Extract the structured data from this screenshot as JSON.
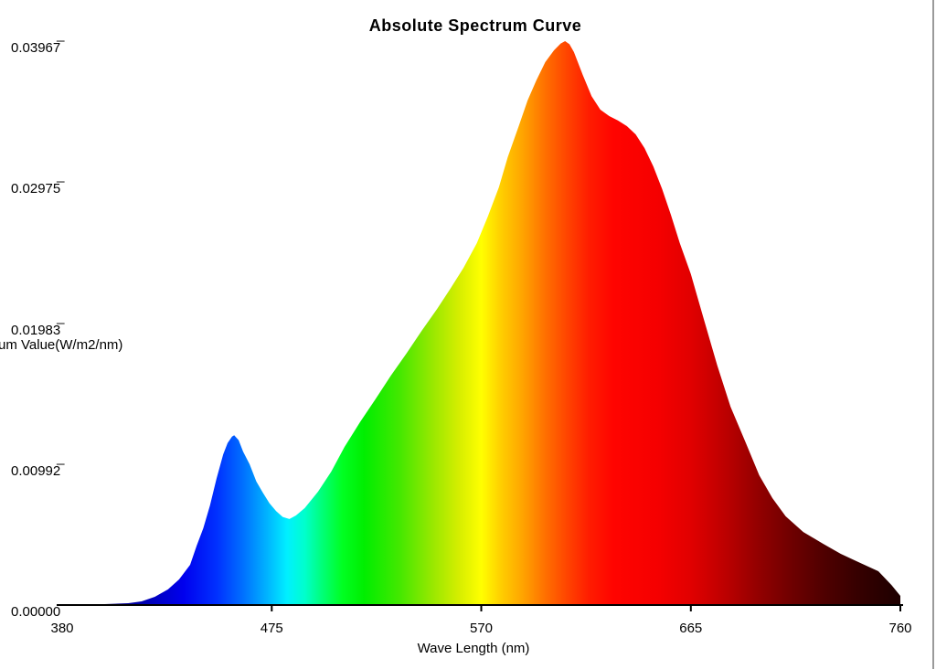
{
  "window": {
    "border_color": "#9a9a9a",
    "background": "#ffffff"
  },
  "chart_data": {
    "type": "area",
    "title": "Absolute Spectrum Curve",
    "xlabel": "Wave Length (nm)",
    "ylabel": "um Value(W/m2/nm)",
    "legend": "none",
    "grid": false,
    "axis_color": "#000000",
    "xlim": [
      380,
      760
    ],
    "ylim": [
      0,
      0.03967
    ],
    "x_ticks": [
      380,
      475,
      570,
      665,
      760
    ],
    "x_tick_labels": [
      "380",
      "475",
      "570",
      "665",
      "760"
    ],
    "y_tick_values": [
      0.03967,
      0.02975,
      0.01983,
      0.00992,
      0
    ],
    "y_tick_labels": [
      "0.03967̅",
      "0.02975̅",
      "0.01983̅",
      "0.00992̅",
      "0.00000"
    ],
    "points": [
      [
        380,
        0
      ],
      [
        398,
        6e-05
      ],
      [
        410,
        0.00013
      ],
      [
        416,
        0.00026
      ],
      [
        422,
        0.00058
      ],
      [
        428,
        0.0011
      ],
      [
        433,
        0.0018
      ],
      [
        438,
        0.00283
      ],
      [
        441,
        0.00418
      ],
      [
        444,
        0.0054
      ],
      [
        447,
        0.007
      ],
      [
        450,
        0.0089
      ],
      [
        453,
        0.0106
      ],
      [
        455,
        0.0114
      ],
      [
        457,
        0.01185
      ],
      [
        458,
        0.01194
      ],
      [
        460,
        0.0116
      ],
      [
        462,
        0.0108
      ],
      [
        465,
        0.0099
      ],
      [
        468,
        0.0087
      ],
      [
        471,
        0.0079
      ],
      [
        474,
        0.00716
      ],
      [
        477,
        0.0066
      ],
      [
        480,
        0.0062
      ],
      [
        483,
        0.00605
      ],
      [
        486,
        0.0063
      ],
      [
        490,
        0.00682
      ],
      [
        496,
        0.00797
      ],
      [
        502,
        0.00939
      ],
      [
        508,
        0.01112
      ],
      [
        515,
        0.01286
      ],
      [
        522,
        0.01447
      ],
      [
        529,
        0.01614
      ],
      [
        536,
        0.01768
      ],
      [
        543,
        0.01929
      ],
      [
        550,
        0.02083
      ],
      [
        556,
        0.02225
      ],
      [
        562,
        0.02373
      ],
      [
        568,
        0.02546
      ],
      [
        573,
        0.02733
      ],
      [
        578,
        0.02939
      ],
      [
        582,
        0.03151
      ],
      [
        587,
        0.03369
      ],
      [
        591,
        0.0355
      ],
      [
        595,
        0.03691
      ],
      [
        599,
        0.03819
      ],
      [
        603,
        0.03903
      ],
      [
        606,
        0.0395
      ],
      [
        608,
        0.03967
      ],
      [
        610,
        0.03945
      ],
      [
        612,
        0.0389
      ],
      [
        616,
        0.0373
      ],
      [
        620,
        0.0358
      ],
      [
        624,
        0.03485
      ],
      [
        628,
        0.0344
      ],
      [
        632,
        0.03408
      ],
      [
        636,
        0.03369
      ],
      [
        640,
        0.03311
      ],
      [
        644,
        0.03215
      ],
      [
        648,
        0.03086
      ],
      [
        652,
        0.02926
      ],
      [
        656,
        0.02745
      ],
      [
        660,
        0.02546
      ],
      [
        665,
        0.02328
      ],
      [
        671,
        0.02006
      ],
      [
        677,
        0.01685
      ],
      [
        683,
        0.01395
      ],
      [
        690,
        0.01138
      ],
      [
        696,
        0.00913
      ],
      [
        702,
        0.00752
      ],
      [
        708,
        0.00624
      ],
      [
        716,
        0.00514
      ],
      [
        725,
        0.00431
      ],
      [
        733,
        0.0036
      ],
      [
        741,
        0.00302
      ],
      [
        750,
        0.00238
      ],
      [
        756,
        0.00141
      ],
      [
        760,
        0.00064
      ]
    ],
    "gradient_stops": [
      [
        380,
        "#1B0055"
      ],
      [
        415,
        "#0000AA"
      ],
      [
        435,
        "#0000EE"
      ],
      [
        450,
        "#0030FF"
      ],
      [
        462,
        "#0070FF"
      ],
      [
        473,
        "#00B4FF"
      ],
      [
        482,
        "#00F0FF"
      ],
      [
        490,
        "#00FFCC"
      ],
      [
        498,
        "#00FF77"
      ],
      [
        507,
        "#00FF22"
      ],
      [
        517,
        "#00EE00"
      ],
      [
        533,
        "#44E800"
      ],
      [
        548,
        "#99E800"
      ],
      [
        560,
        "#D6EE00"
      ],
      [
        570,
        "#FFFF00"
      ],
      [
        579,
        "#FFCE00"
      ],
      [
        589,
        "#FFA300"
      ],
      [
        599,
        "#FF7000"
      ],
      [
        609,
        "#FF4400"
      ],
      [
        619,
        "#FF1C00"
      ],
      [
        630,
        "#FF0400"
      ],
      [
        650,
        "#F50000"
      ],
      [
        665,
        "#E10000"
      ],
      [
        680,
        "#BE0000"
      ],
      [
        695,
        "#940000"
      ],
      [
        710,
        "#700000"
      ],
      [
        725,
        "#500000"
      ],
      [
        740,
        "#370000"
      ],
      [
        760,
        "#1D0000"
      ]
    ]
  }
}
